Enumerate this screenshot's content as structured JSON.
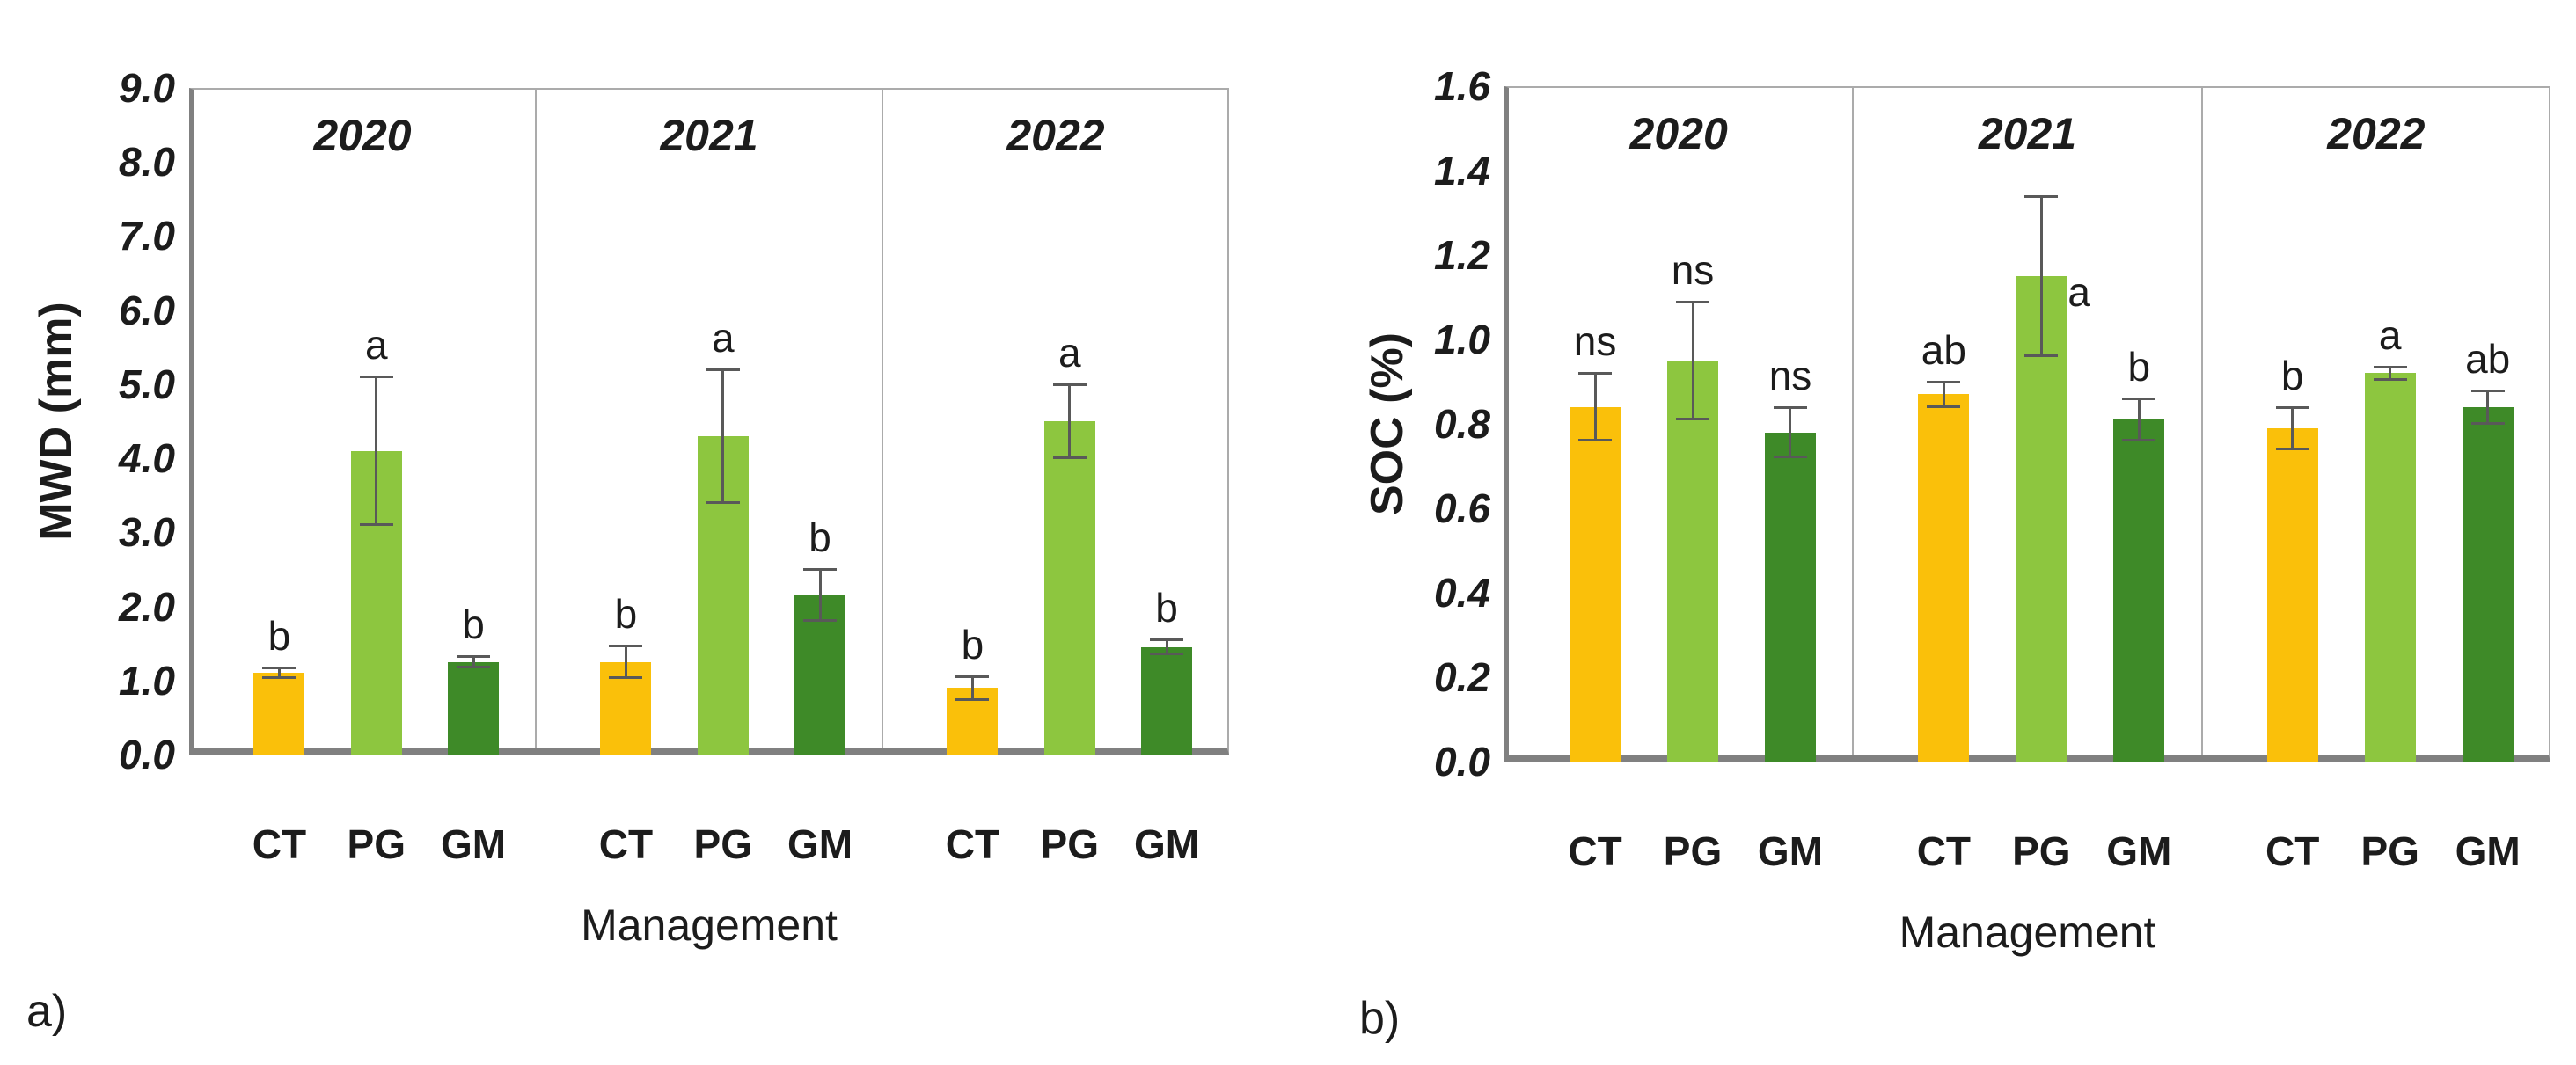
{
  "figure": {
    "background": "#ffffff",
    "text_color": "#1c1c1c",
    "axis_color": "#808080",
    "panel_border_color": "#ababab",
    "error_bar_color": "#595959"
  },
  "chart_data": [
    {
      "type": "bar",
      "id": "mwd",
      "corner_label": "a)",
      "ylabel": "MWD (mm)",
      "xlabel": "Management",
      "ylim": [
        0,
        9.0
      ],
      "ytick_labels": [
        "9.0",
        "8.0",
        "7.0",
        "6.0",
        "5.0",
        "4.0",
        "3.0",
        "2.0",
        "1.0",
        "0.0"
      ],
      "grid": false,
      "legend": false,
      "groups": [
        "2020",
        "2021",
        "2022"
      ],
      "categories": [
        "CT",
        "PG",
        "GM"
      ],
      "bar_colors": [
        "#FAC00A",
        "#8DC63F",
        "#3E8A28"
      ],
      "series": [
        {
          "group": "2020",
          "values": [
            1.1,
            4.1,
            1.25
          ],
          "errors": [
            0.07,
            1.0,
            0.08
          ],
          "letters": [
            "b",
            "a",
            "b"
          ]
        },
        {
          "group": "2021",
          "values": [
            1.25,
            4.3,
            2.15
          ],
          "errors": [
            0.22,
            0.9,
            0.35
          ],
          "letters": [
            "b",
            "a",
            "b"
          ]
        },
        {
          "group": "2022",
          "values": [
            0.9,
            4.5,
            1.45
          ],
          "errors": [
            0.16,
            0.5,
            0.1
          ],
          "letters": [
            "b",
            "a",
            "b"
          ]
        }
      ]
    },
    {
      "type": "bar",
      "id": "soc",
      "corner_label": "b)",
      "ylabel": "SOC (%)",
      "xlabel": "Management",
      "ylim": [
        0,
        1.6
      ],
      "ytick_labels": [
        "1.6",
        "1.4",
        "1.2",
        "1.0",
        "0.8",
        "0.6",
        "0.4",
        "0.2",
        "0.0"
      ],
      "grid": false,
      "legend": false,
      "groups": [
        "2020",
        "2021",
        "2022"
      ],
      "categories": [
        "CT",
        "PG",
        "GM"
      ],
      "bar_colors": [
        "#FAC00A",
        "#8DC63F",
        "#3E8A28"
      ],
      "series": [
        {
          "group": "2020",
          "values": [
            0.84,
            0.95,
            0.78
          ],
          "errors": [
            0.08,
            0.14,
            0.06
          ],
          "letters": [
            "ns",
            "ns",
            "ns"
          ]
        },
        {
          "group": "2021",
          "values": [
            0.87,
            1.15,
            0.81
          ],
          "errors": [
            0.03,
            0.19,
            0.05
          ],
          "letters": [
            "ab",
            "a",
            "b"
          ]
        },
        {
          "group": "2022",
          "values": [
            0.79,
            0.92,
            0.84
          ],
          "errors": [
            0.05,
            0.015,
            0.04
          ],
          "letters": [
            "b",
            "a",
            "ab"
          ]
        }
      ]
    }
  ]
}
